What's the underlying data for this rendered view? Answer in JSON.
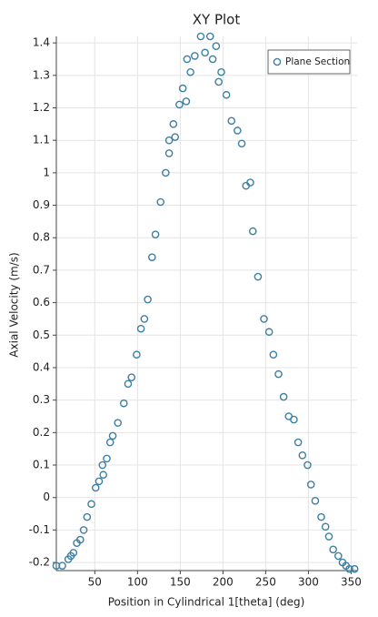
{
  "chart_data": {
    "type": "scatter",
    "title": "XY Plot",
    "x_label": "Position in Cylindrical 1[theta] (deg)",
    "y_label": "Axial Velocity (m/s)",
    "x": [
      5,
      12,
      19,
      22,
      25,
      29,
      33,
      37,
      41,
      46,
      51,
      55,
      59,
      60,
      64,
      68,
      71,
      77,
      84,
      89,
      93,
      99,
      104,
      108,
      112,
      117,
      121,
      127,
      133,
      137,
      137,
      144,
      142,
      149,
      153,
      157,
      158,
      162,
      167,
      174,
      179,
      185,
      188,
      192,
      195,
      198,
      204,
      210,
      217,
      222,
      227,
      232,
      235,
      241,
      248,
      254,
      259,
      265,
      271,
      277,
      283,
      288,
      293,
      299,
      303,
      308,
      315,
      320,
      324,
      329,
      335,
      340,
      344,
      348,
      354
    ],
    "series": [
      {
        "name": "Plane Section",
        "color": "#3d7fa3",
        "values": [
          -0.21,
          -0.21,
          -0.19,
          -0.18,
          -0.17,
          -0.14,
          -0.13,
          -0.1,
          -0.06,
          -0.02,
          0.03,
          0.05,
          0.1,
          0.07,
          0.12,
          0.17,
          0.19,
          0.23,
          0.29,
          0.35,
          0.37,
          0.44,
          0.52,
          0.55,
          0.61,
          0.74,
          0.81,
          0.91,
          1.0,
          1.06,
          1.1,
          1.11,
          1.15,
          1.21,
          1.26,
          1.22,
          1.35,
          1.31,
          1.36,
          1.42,
          1.37,
          1.42,
          1.35,
          1.39,
          1.28,
          1.31,
          1.24,
          1.16,
          1.13,
          1.09,
          0.96,
          0.97,
          0.82,
          0.68,
          0.55,
          0.51,
          0.44,
          0.38,
          0.31,
          0.25,
          0.24,
          0.17,
          0.13,
          0.1,
          0.04,
          -0.01,
          -0.06,
          -0.09,
          -0.12,
          -0.16,
          -0.18,
          -0.2,
          -0.21,
          -0.22,
          -0.22
        ]
      }
    ],
    "xlim": [
      5,
      357
    ],
    "ylim": [
      -0.225,
      1.42
    ],
    "xticks": [
      50,
      100,
      150,
      200,
      250,
      300,
      350
    ],
    "yticks": [
      -0.2,
      -0.1,
      0,
      0.1,
      0.2,
      0.3,
      0.4,
      0.5,
      0.6,
      0.7,
      0.8,
      0.9,
      1,
      1.1,
      1.2,
      1.3,
      1.4
    ],
    "grid": true,
    "legend": "upper right"
  }
}
